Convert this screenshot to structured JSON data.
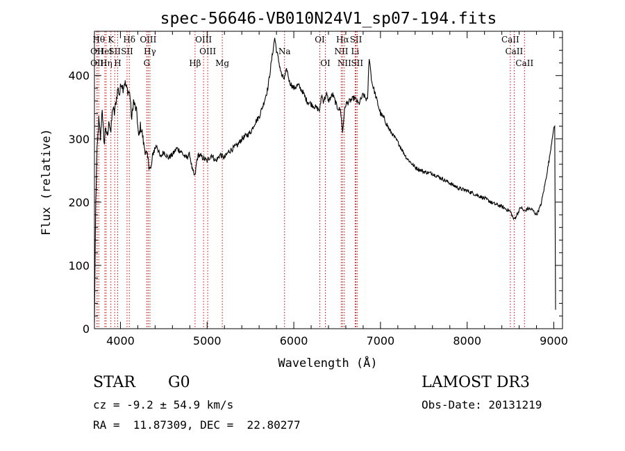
{
  "chart_data": {
    "type": "line",
    "title": "spec-56646-VB010N24V1_sp07-194.fits",
    "xlabel": "Wavelength (Å)",
    "ylabel": "Flux (relative)",
    "xlim": [
      3700,
      9100
    ],
    "ylim": [
      0,
      470
    ],
    "x_ticks": [
      4000,
      5000,
      6000,
      7000,
      8000,
      9000
    ],
    "y_ticks": [
      0,
      100,
      200,
      300,
      400
    ],
    "grid": false,
    "line_color": "#000000",
    "marker_color": "#cc0000",
    "series": [
      {
        "x": [
          3700,
          3715,
          3730,
          3750,
          3770,
          3790,
          3810,
          3830,
          3850,
          3870,
          3890,
          3910,
          3930,
          3950,
          3970,
          3990,
          4010,
          4030,
          4050,
          4070,
          4090,
          4110,
          4130,
          4150,
          4170,
          4190,
          4210,
          4230,
          4250,
          4270,
          4290,
          4310,
          4330,
          4350,
          4380,
          4420,
          4460,
          4500,
          4550,
          4600,
          4650,
          4700,
          4750,
          4800,
          4830,
          4860,
          4880,
          4900,
          4950,
          5000,
          5050,
          5100,
          5150,
          5200,
          5250,
          5300,
          5350,
          5400,
          5450,
          5500,
          5550,
          5600,
          5650,
          5700,
          5750,
          5780,
          5800,
          5830,
          5860,
          5890,
          5920,
          5950,
          6000,
          6050,
          6100,
          6150,
          6200,
          6250,
          6300,
          6320,
          6340,
          6360,
          6380,
          6400,
          6450,
          6500,
          6540,
          6563,
          6580,
          6600,
          6650,
          6700,
          6750,
          6800,
          6850,
          6870,
          6900,
          6950,
          7000,
          7050,
          7100,
          7200,
          7300,
          7400,
          7500,
          7600,
          7700,
          7800,
          7900,
          8000,
          8100,
          8200,
          8300,
          8400,
          8500,
          8540,
          8580,
          8620,
          8660,
          8700,
          8750,
          8800,
          8850,
          8900,
          8950,
          8990,
          9010,
          9020
        ],
        "y": [
          10,
          200,
          280,
          330,
          300,
          350,
          290,
          320,
          300,
          330,
          310,
          350,
          340,
          360,
          380,
          370,
          390,
          380,
          390,
          380,
          375,
          370,
          330,
          360,
          350,
          340,
          300,
          320,
          310,
          290,
          280,
          270,
          260,
          250,
          280,
          290,
          270,
          280,
          270,
          275,
          285,
          280,
          270,
          275,
          250,
          240,
          265,
          275,
          270,
          265,
          275,
          265,
          275,
          270,
          280,
          285,
          290,
          300,
          305,
          310,
          325,
          335,
          355,
          380,
          430,
          460,
          440,
          420,
          400,
          395,
          410,
          390,
          380,
          385,
          375,
          360,
          355,
          350,
          345,
          370,
          360,
          365,
          370,
          360,
          370,
          350,
          345,
          310,
          340,
          355,
          360,
          365,
          355,
          370,
          360,
          430,
          390,
          365,
          340,
          330,
          315,
          295,
          270,
          255,
          248,
          245,
          238,
          230,
          222,
          218,
          212,
          206,
          198,
          193,
          185,
          172,
          182,
          192,
          185,
          190,
          188,
          180,
          195,
          230,
          270,
          310,
          320,
          30
        ]
      }
    ],
    "line_markers": [
      {
        "x": 3750,
        "row": 0,
        "label": "Hθ"
      },
      {
        "x": 3730,
        "row": 1,
        "label": "OII"
      },
      {
        "x": 3730,
        "row": 2,
        "label": "OII"
      },
      {
        "x": 3820,
        "row": 1,
        "label": "HeI"
      },
      {
        "x": 3835,
        "row": 2,
        "label": "Hη"
      },
      {
        "x": 3890,
        "row": 0,
        "label": "K"
      },
      {
        "x": 3934,
        "row": 1,
        "label": "SII"
      },
      {
        "x": 3968,
        "row": 2,
        "label": "H"
      },
      {
        "x": 4102,
        "row": 0,
        "label": "Hδ"
      },
      {
        "x": 4076,
        "row": 1,
        "label": "SII"
      },
      {
        "x": 4320,
        "row": 0,
        "label": "OIII"
      },
      {
        "x": 4340,
        "row": 1,
        "label": "Hγ"
      },
      {
        "x": 4304,
        "row": 2,
        "label": "G"
      },
      {
        "x": 4861,
        "row": 2,
        "label": "Hβ"
      },
      {
        "x": 4959,
        "row": 0,
        "label": "OIII"
      },
      {
        "x": 5007,
        "row": 1,
        "label": "OIII"
      },
      {
        "x": 5175,
        "row": 2,
        "label": "Mg"
      },
      {
        "x": 5893,
        "row": 1,
        "label": "Na"
      },
      {
        "x": 6300,
        "row": 0,
        "label": "OI"
      },
      {
        "x": 6364,
        "row": 2,
        "label": "OI"
      },
      {
        "x": 6563,
        "row": 0,
        "label": "Hα"
      },
      {
        "x": 6548,
        "row": 1,
        "label": "NII"
      },
      {
        "x": 6583,
        "row": 2,
        "label": "NII"
      },
      {
        "x": 6717,
        "row": 0,
        "label": "SII"
      },
      {
        "x": 6708,
        "row": 1,
        "label": "Li"
      },
      {
        "x": 6731,
        "row": 2,
        "label": "SII"
      },
      {
        "x": 8498,
        "row": 0,
        "label": "CaII"
      },
      {
        "x": 8542,
        "row": 1,
        "label": "CaII"
      },
      {
        "x": 8662,
        "row": 2,
        "label": "CaII"
      }
    ]
  },
  "info": {
    "object_class": "STAR",
    "subclass": "G0",
    "redshift_text": "cz = -9.2 ± 54.9 km/s",
    "coords_text": "RA =  11.87309, DEC =  22.80277",
    "survey": "LAMOST DR3",
    "obs_date_text": "Obs-Date: 20131219"
  }
}
